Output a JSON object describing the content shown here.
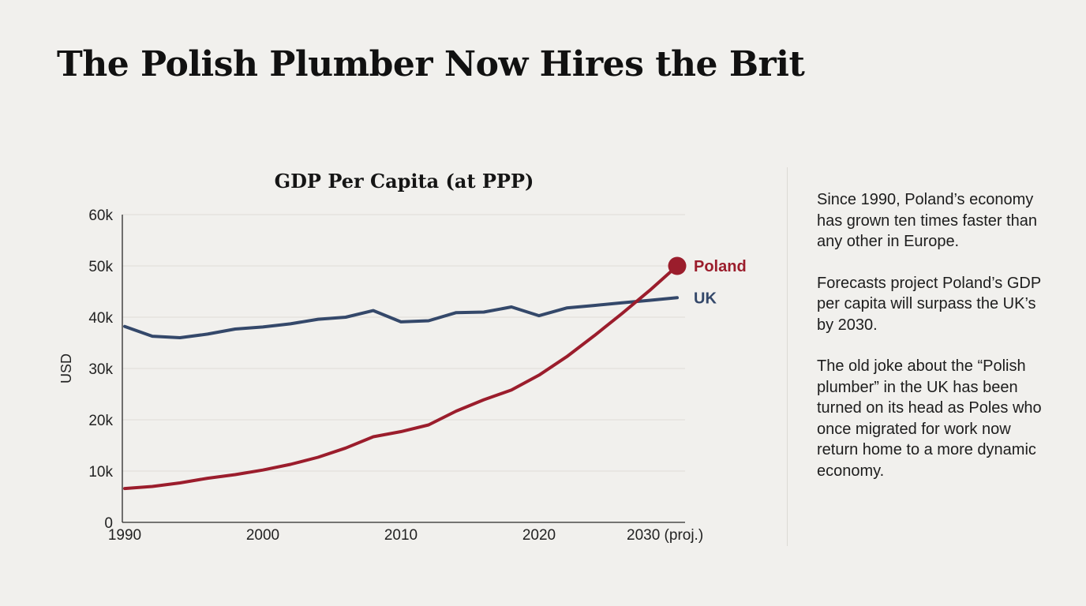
{
  "headline": "The Polish Plumber Now Hires the Brit",
  "sidebar": {
    "paragraphs": [
      "Since 1990, Poland’s economy has grown ten times faster than any other in Europe.",
      "Forecasts project Poland’s GDP per capita will surpass the UK’s by 2030.",
      "The old joke about the “Polish plumber” in the UK has been turned on its head as Poles who once migrated for work now return home to a more dynamic economy."
    ]
  },
  "chart_data": {
    "type": "line",
    "title": "GDP Per Capita (at PPP)",
    "xlabel": "",
    "ylabel": "USD",
    "xlim": [
      1990,
      2030
    ],
    "ylim": [
      0,
      60000
    ],
    "grid": true,
    "x_ticks": [
      {
        "value": 1990,
        "label": "1990"
      },
      {
        "value": 2000,
        "label": "2000"
      },
      {
        "value": 2010,
        "label": "2010"
      },
      {
        "value": 2020,
        "label": "2020"
      },
      {
        "value": 2030,
        "label": "2030 (proj.)"
      }
    ],
    "y_ticks": [
      {
        "value": 0,
        "label": "0"
      },
      {
        "value": 10000,
        "label": "10k"
      },
      {
        "value": 20000,
        "label": "20k"
      },
      {
        "value": 30000,
        "label": "30k"
      },
      {
        "value": 40000,
        "label": "40k"
      },
      {
        "value": 50000,
        "label": "50k"
      },
      {
        "value": 60000,
        "label": "60k"
      }
    ],
    "x": [
      1990,
      1992,
      1994,
      1996,
      1998,
      2000,
      2002,
      2004,
      2006,
      2008,
      2010,
      2012,
      2014,
      2016,
      2018,
      2020,
      2022,
      2024,
      2026,
      2028,
      2030
    ],
    "series": [
      {
        "name": "UK",
        "label": "UK",
        "color": "#34486a",
        "values": [
          38200,
          36300,
          36000,
          36700,
          37700,
          38100,
          38700,
          39600,
          40000,
          41300,
          39100,
          39300,
          40900,
          41000,
          42000,
          40300,
          41800,
          42300,
          42800,
          43300,
          43800
        ],
        "end_marker": false
      },
      {
        "name": "Poland",
        "label": "Poland",
        "color": "#9b1d2c",
        "values": [
          6600,
          7000,
          7700,
          8600,
          9300,
          10200,
          11300,
          12700,
          14500,
          16700,
          17700,
          19000,
          21700,
          23900,
          25800,
          28700,
          32300,
          36400,
          40700,
          45200,
          50000
        ],
        "end_marker": true
      }
    ]
  }
}
